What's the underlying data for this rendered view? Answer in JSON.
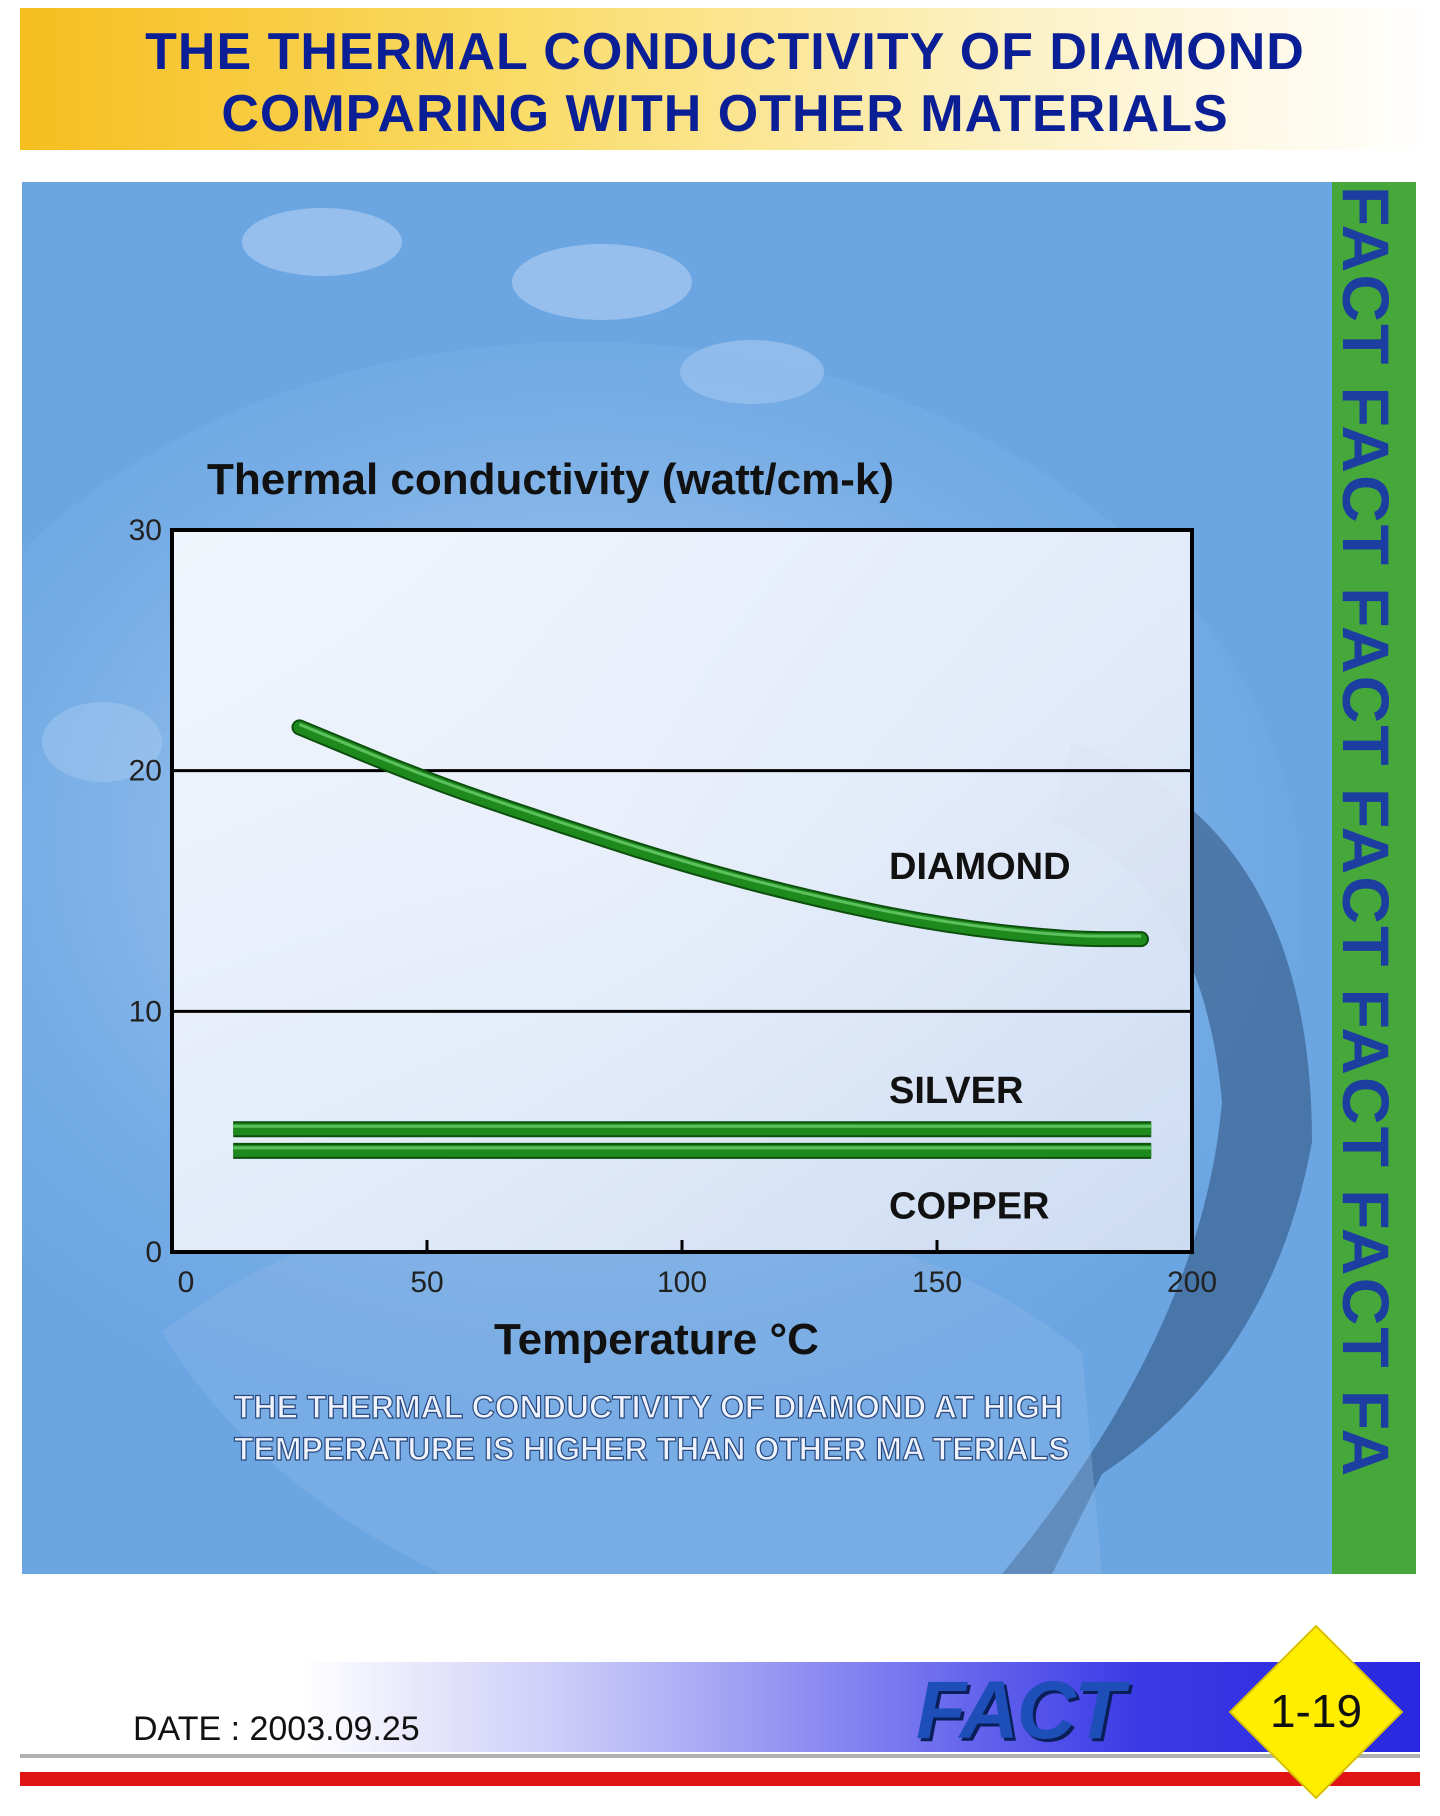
{
  "header": {
    "title_line_1": "THE THERMAL CONDUCTIVITY OF DIAMOND",
    "title_line_2": "COMPARING WITH OTHER MATERIALS"
  },
  "chart_data": {
    "type": "line",
    "title": "",
    "ylabel": "Thermal conductivity (watt/cm-k)",
    "xlabel": "Temperature °C",
    "xlim": [
      0,
      200
    ],
    "ylim": [
      0,
      30
    ],
    "x_ticks": [
      "0",
      "50",
      "100",
      "150",
      "200"
    ],
    "y_ticks": [
      "0",
      "10",
      "20",
      "30"
    ],
    "grid": "horizontal lines at 10 and 20",
    "series": [
      {
        "name": "DIAMOND",
        "x": [
          25,
          50,
          75,
          100,
          125,
          150,
          175,
          190
        ],
        "y": [
          21.8,
          19.6,
          17.8,
          16.1,
          14.7,
          13.6,
          13.0,
          13.0
        ]
      },
      {
        "name": "SILVER",
        "x": [
          12,
          192
        ],
        "y": [
          5.1,
          5.1
        ]
      },
      {
        "name": "COPPER",
        "x": [
          12,
          192
        ],
        "y": [
          4.2,
          4.2
        ]
      }
    ],
    "annotation": [
      "THE THERMAL CONDUCTIVITY OF DIAMOND AT HIGH",
      "TEMPERATURE IS HIGHER THAN OTHER MA TERIALS"
    ],
    "line_color": "#1e8a1e"
  },
  "side_strip": {
    "text": "FACT  FACT  FACT  FACT  FACT  FACT  FA"
  },
  "footer": {
    "date": "DATE : 2003.09.25",
    "brand": "FACT",
    "page_number": "1-19"
  },
  "colors": {
    "title_text": "#0a1e96",
    "panel_bg": "#6ba6e3",
    "strip_bg": "#46a83a",
    "badge": "#ffee00"
  }
}
